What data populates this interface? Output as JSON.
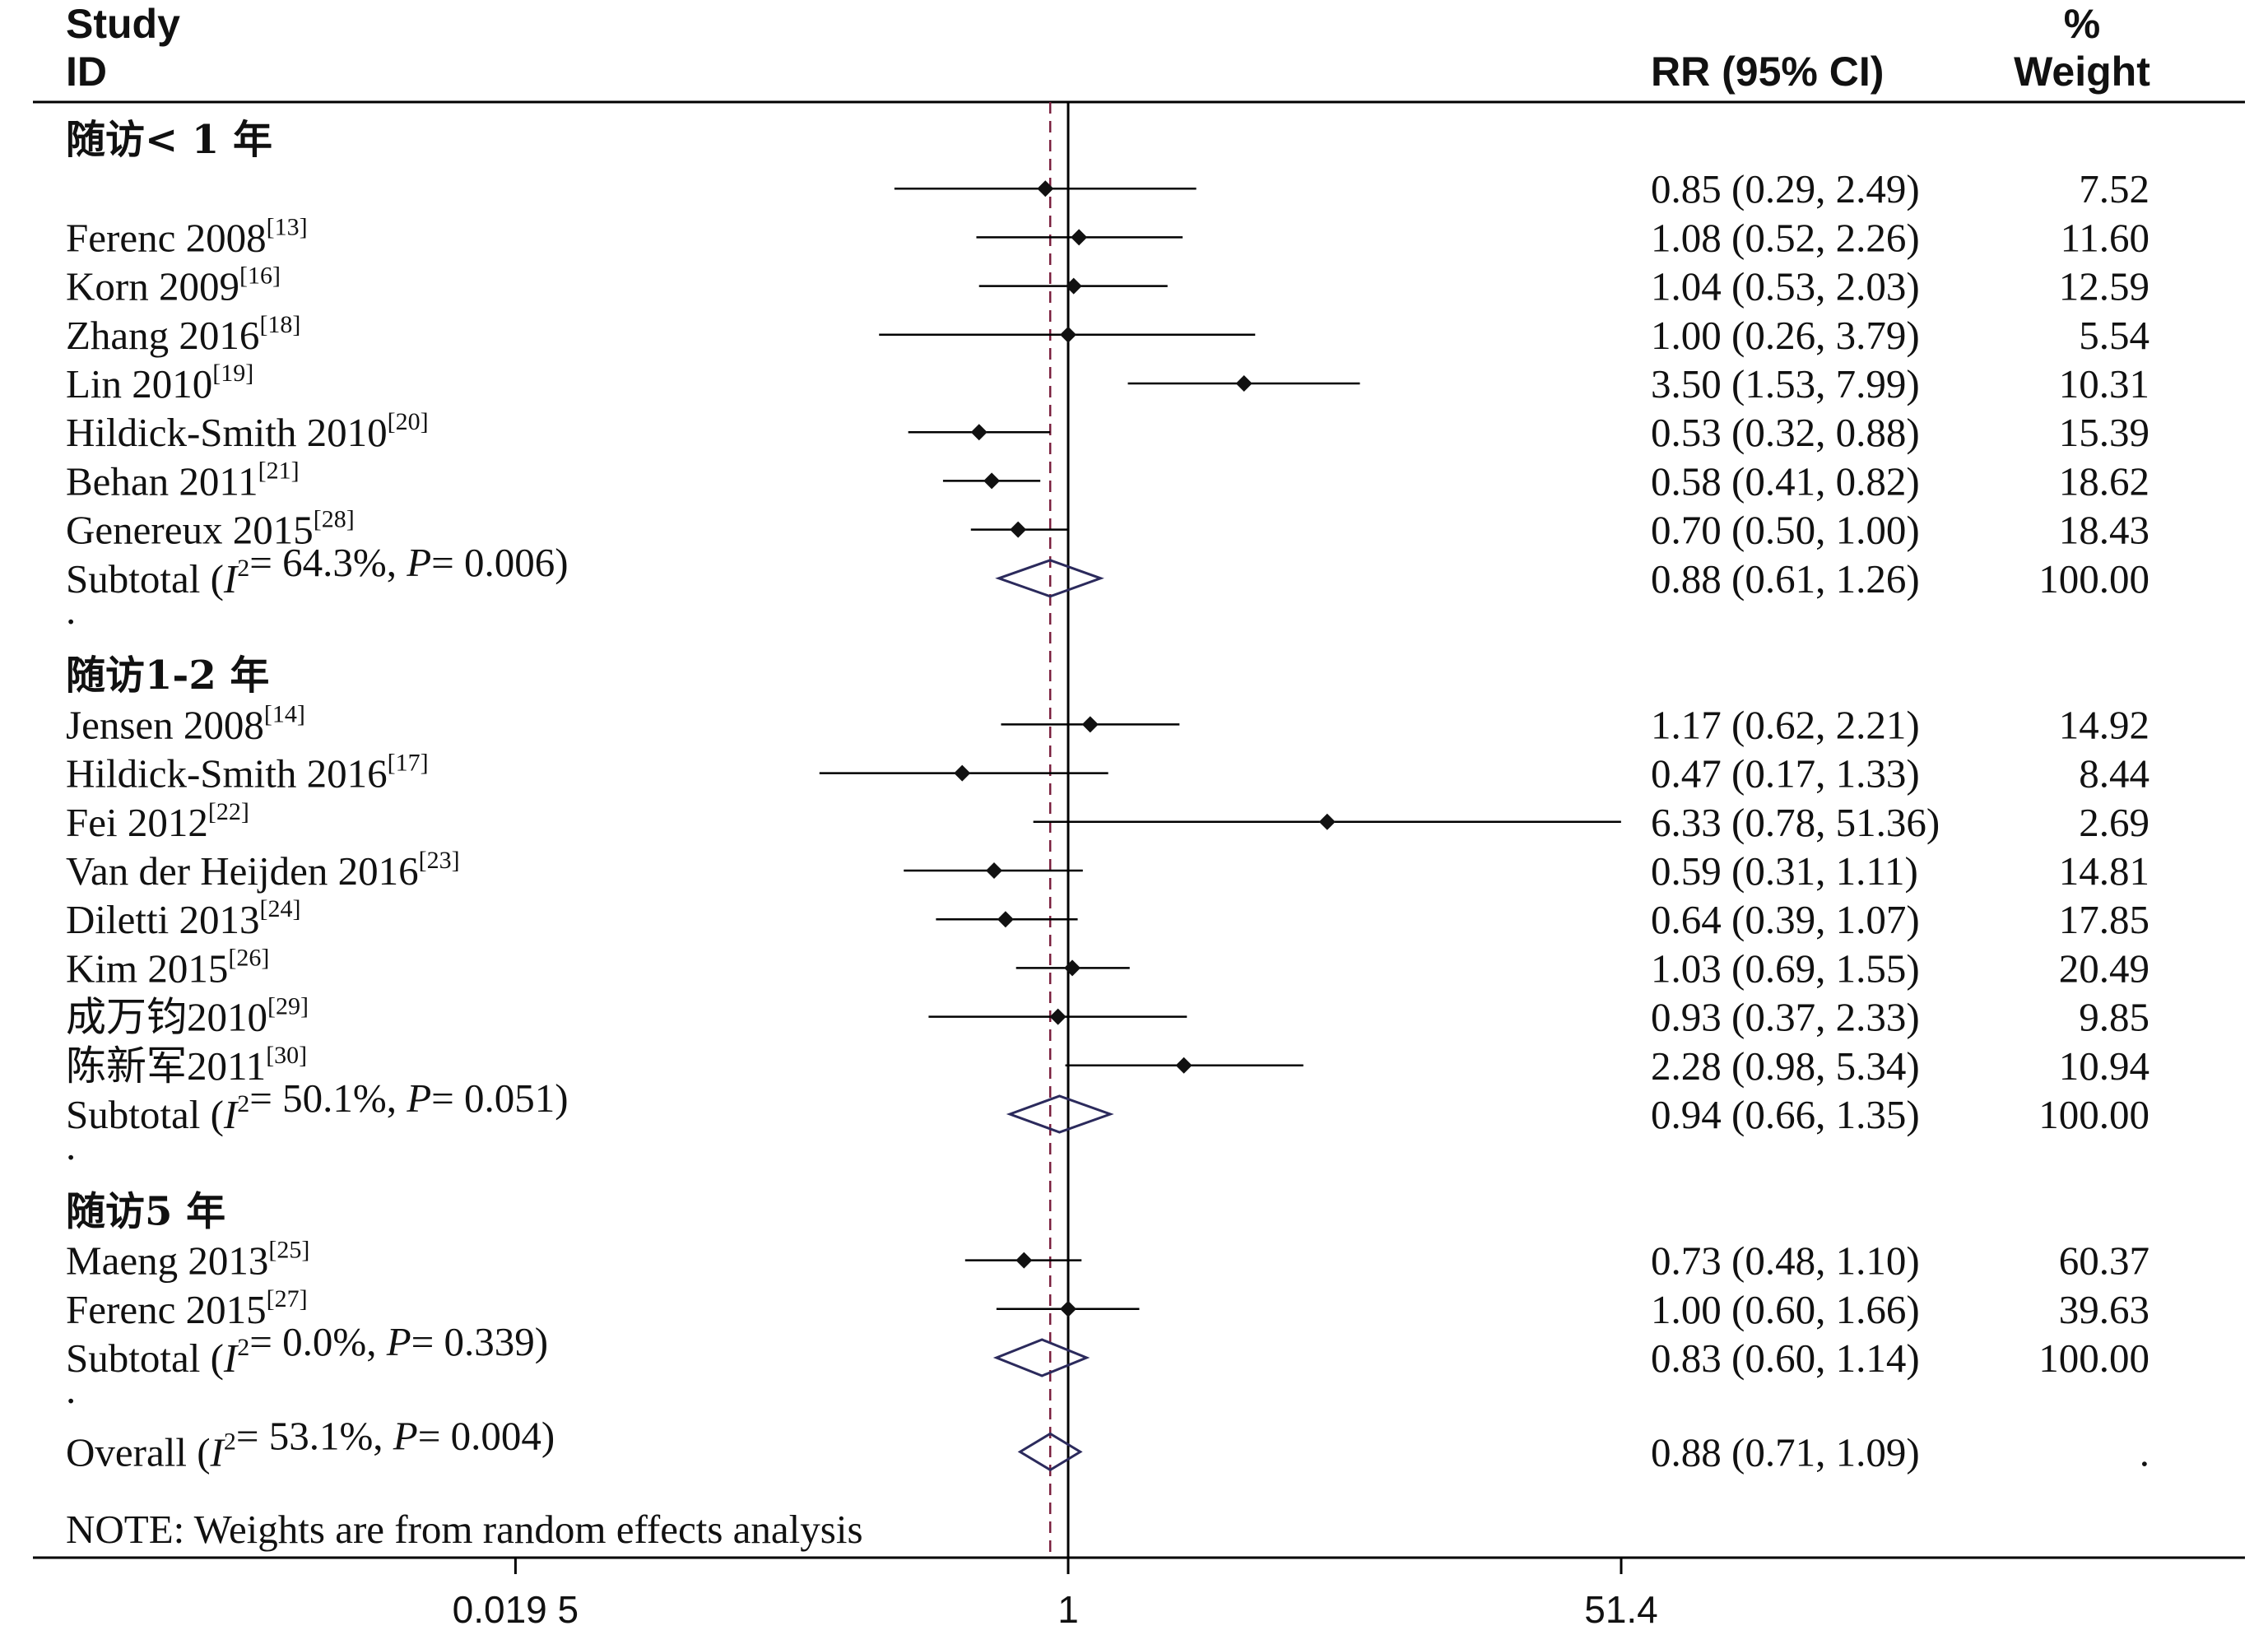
{
  "header": {
    "study_line1": "Study",
    "study_line2": "ID",
    "rr": "RR (95% CI)",
    "weight_line1": "%",
    "weight_line2": "Weight"
  },
  "note": "NOTE: Weights are from random effects analysis",
  "colors": {
    "line": "#000000",
    "diamond": "#2b2a5c",
    "dashed": "#7a1f3d"
  },
  "chart_data": {
    "type": "forest",
    "x_scale": "log",
    "xticks": [
      {
        "value": 0.0195,
        "label": "0.019 5"
      },
      {
        "value": 1,
        "label": "1"
      },
      {
        "value": 51.4,
        "label": "51.4"
      }
    ],
    "null_line": 1,
    "overall_line": 0.88,
    "groups": [
      {
        "title": "随访< 1 年",
        "studies": [
          {
            "name": "",
            "ref": "",
            "rr": 0.85,
            "lo": 0.29,
            "hi": 2.49,
            "ci_text": "0.85 (0.29, 2.49)",
            "weight": "7.52"
          },
          {
            "name": "Ferenc 2008",
            "ref": "[13]",
            "rr": 1.08,
            "lo": 0.52,
            "hi": 2.26,
            "ci_text": "1.08 (0.52, 2.26)",
            "weight": "11.60"
          },
          {
            "name": "Korn 2009",
            "ref": "[16]",
            "rr": 1.04,
            "lo": 0.53,
            "hi": 2.03,
            "ci_text": "1.04 (0.53, 2.03)",
            "weight": "12.59"
          },
          {
            "name": "Zhang 2016",
            "ref": "[18]",
            "rr": 1.0,
            "lo": 0.26,
            "hi": 3.79,
            "ci_text": "1.00 (0.26, 3.79)",
            "weight": "5.54"
          },
          {
            "name": "Lin 2010",
            "ref": "[19]",
            "rr": 3.5,
            "lo": 1.53,
            "hi": 7.99,
            "ci_text": "3.50 (1.53, 7.99)",
            "weight": "10.31"
          },
          {
            "name": "Hildick-Smith 2010",
            "ref": "[20]",
            "rr": 0.53,
            "lo": 0.32,
            "hi": 0.88,
            "ci_text": "0.53 (0.32, 0.88)",
            "weight": "15.39"
          },
          {
            "name": "Behan 2011",
            "ref": "[21]",
            "rr": 0.58,
            "lo": 0.41,
            "hi": 0.82,
            "ci_text": "0.58 (0.41, 0.82)",
            "weight": "18.62"
          },
          {
            "name": "Genereux 2015",
            "ref": "[28]",
            "rr": 0.7,
            "lo": 0.5,
            "hi": 1.0,
            "ci_text": "0.70 (0.50, 1.00)",
            "weight": "18.43"
          }
        ],
        "subtotal": {
          "prefix": "Subtotal",
          "i2": "= 64.3%, ",
          "p": "= 0.006)",
          "rr": 0.88,
          "lo": 0.61,
          "hi": 1.26,
          "ci_text": "0.88 (0.61, 1.26)",
          "weight": "100.00"
        }
      },
      {
        "title": "随访1-2 年",
        "studies": [
          {
            "name": "Jensen 2008",
            "ref": "[14]",
            "rr": 1.17,
            "lo": 0.62,
            "hi": 2.21,
            "ci_text": "1.17 (0.62, 2.21)",
            "weight": "14.92"
          },
          {
            "name": "Hildick-Smith 2016",
            "ref": "[17]",
            "rr": 0.47,
            "lo": 0.17,
            "hi": 1.33,
            "ci_text": "0.47 (0.17, 1.33)",
            "weight": "8.44"
          },
          {
            "name": "Fei 2012",
            "ref": "[22]",
            "rr": 6.33,
            "lo": 0.78,
            "hi": 51.36,
            "ci_text": "6.33 (0.78, 51.36)",
            "weight": "2.69"
          },
          {
            "name": "Van der Heijden 2016",
            "ref": "[23]",
            "rr": 0.59,
            "lo": 0.31,
            "hi": 1.11,
            "ci_text": "0.59 (0.31, 1.11)",
            "weight": "14.81"
          },
          {
            "name": "Diletti 2013",
            "ref": "[24]",
            "rr": 0.64,
            "lo": 0.39,
            "hi": 1.07,
            "ci_text": "0.64 (0.39, 1.07)",
            "weight": "17.85"
          },
          {
            "name": "Kim 2015",
            "ref": "[26]",
            "rr": 1.03,
            "lo": 0.69,
            "hi": 1.55,
            "ci_text": "1.03 (0.69, 1.55)",
            "weight": "20.49"
          },
          {
            "name": "成万钧2010",
            "ref": "[29]",
            "rr": 0.93,
            "lo": 0.37,
            "hi": 2.33,
            "ci_text": "0.93 (0.37, 2.33)",
            "weight": "9.85"
          },
          {
            "name": "陈新军2011",
            "ref": "[30]",
            "rr": 2.28,
            "lo": 0.98,
            "hi": 5.34,
            "ci_text": "2.28 (0.98, 5.34)",
            "weight": "10.94"
          }
        ],
        "subtotal": {
          "prefix": "Subtotal",
          "i2": "= 50.1%, ",
          "p": "= 0.051)",
          "rr": 0.94,
          "lo": 0.66,
          "hi": 1.35,
          "ci_text": "0.94 (0.66, 1.35)",
          "weight": "100.00"
        }
      },
      {
        "title": "随访5 年",
        "studies": [
          {
            "name": "Maeng 2013",
            "ref": "[25]",
            "rr": 0.73,
            "lo": 0.48,
            "hi": 1.1,
            "ci_text": "0.73 (0.48, 1.10)",
            "weight": "60.37"
          },
          {
            "name": "Ferenc 2015",
            "ref": "[27]",
            "rr": 1.0,
            "lo": 0.6,
            "hi": 1.66,
            "ci_text": "1.00 (0.60, 1.66)",
            "weight": "39.63"
          }
        ],
        "subtotal": {
          "prefix": "Subtotal",
          "i2": "= 0.0%, ",
          "p": "= 0.339)",
          "rr": 0.83,
          "lo": 0.6,
          "hi": 1.14,
          "ci_text": "0.83 (0.60, 1.14)",
          "weight": "100.00"
        }
      }
    ],
    "overall": {
      "prefix": "Overall",
      "i2": "= 53.1%, ",
      "p": "= 0.004)",
      "rr": 0.88,
      "lo": 0.71,
      "hi": 1.09,
      "ci_text": "0.88 (0.71, 1.09)",
      "weight": "."
    }
  }
}
